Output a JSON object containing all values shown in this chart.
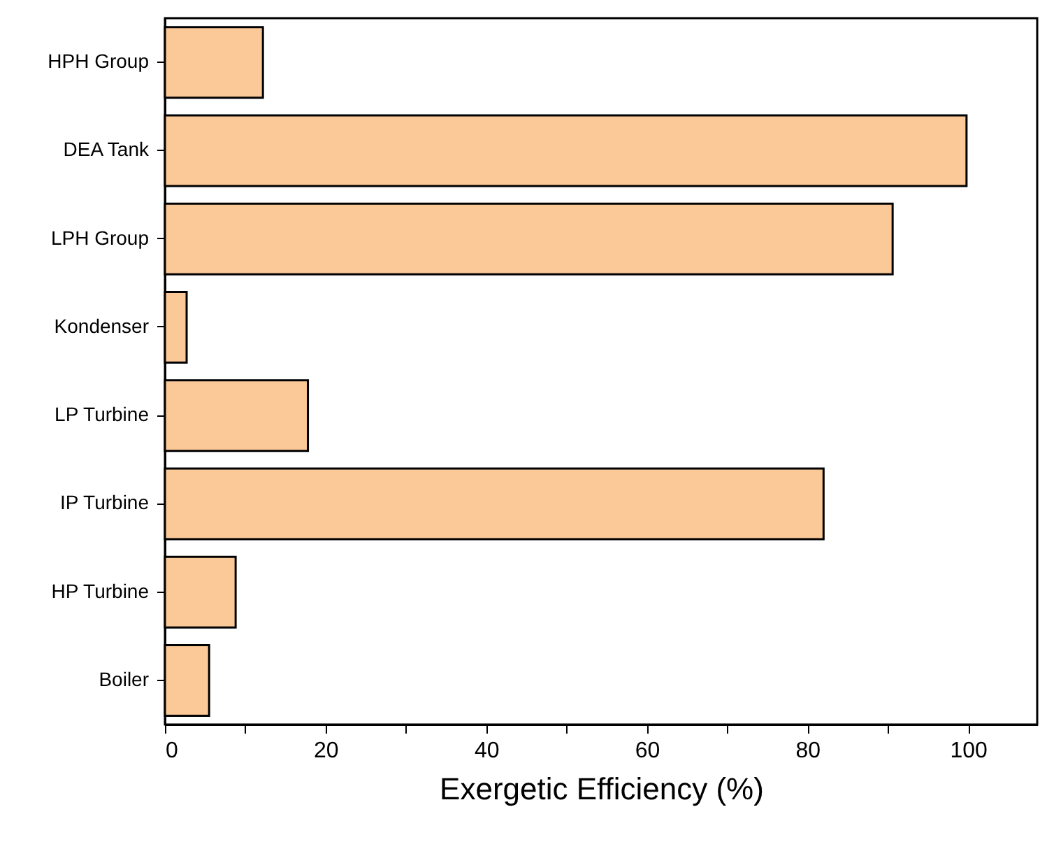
{
  "chart_data": {
    "type": "bar",
    "orientation": "horizontal",
    "xlabel": "Exergetic Efficiency (%)",
    "categories": [
      "HPH Group",
      "DEA Tank",
      "LPH Group",
      "Kondenser",
      "LP Turbine",
      "IP Turbine",
      "HP Turbine",
      "Boiler"
    ],
    "values": [
      12.2,
      99.8,
      90.6,
      2.7,
      17.8,
      82.0,
      8.8,
      5.5
    ],
    "color": "#fbc898",
    "xlim": [
      0,
      108.6
    ],
    "xticks": [
      0,
      {
        "value": 10,
        "label": null
      },
      20,
      {
        "value": 30,
        "label": null
      },
      40,
      {
        "value": 50,
        "label": null
      },
      60,
      {
        "value": 70,
        "label": null
      },
      80,
      {
        "value": 90,
        "label": null
      },
      100
    ],
    "grid": false
  }
}
